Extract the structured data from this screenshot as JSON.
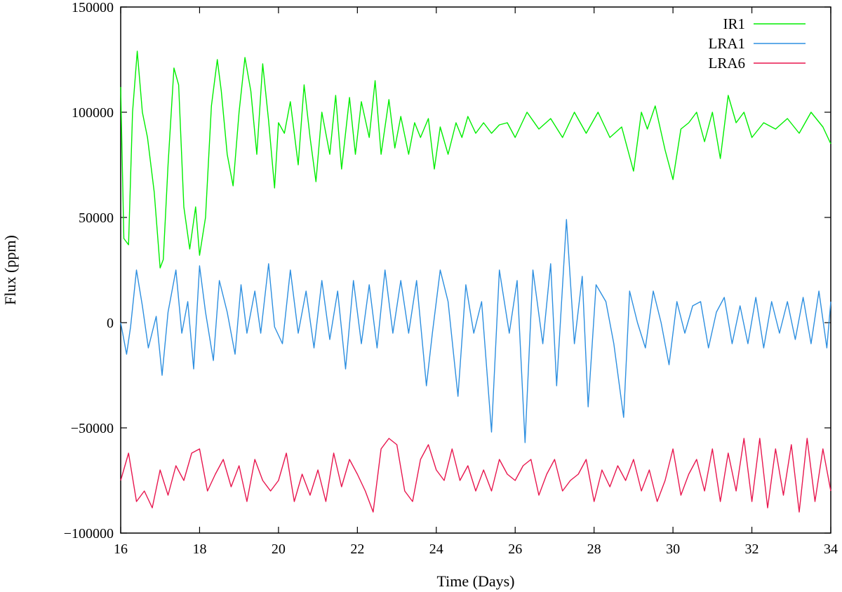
{
  "chart_data": {
    "type": "line",
    "title": "",
    "xlabel": "Time (Days)",
    "ylabel": "Flux (ppm)",
    "xlim": [
      16,
      34
    ],
    "ylim": [
      -100000,
      150000
    ],
    "xticks": [
      16,
      18,
      20,
      22,
      24,
      26,
      28,
      30,
      32,
      34
    ],
    "yticks": [
      -100000,
      -50000,
      0,
      50000,
      100000,
      150000
    ],
    "xtick_labels": [
      "16",
      "18",
      "20",
      "22",
      "24",
      "26",
      "28",
      "30",
      "32",
      "34"
    ],
    "ytick_labels": [
      "−100000",
      "−50000",
      "0",
      "50000",
      "100000",
      "150000"
    ],
    "grid": false,
    "legend_position": "top-right",
    "series": [
      {
        "name": "IR1",
        "color": "#00ee00",
        "x": [
          16.0,
          16.08,
          16.2,
          16.3,
          16.42,
          16.55,
          16.68,
          16.85,
          17.0,
          17.08,
          17.2,
          17.35,
          17.47,
          17.6,
          17.75,
          17.9,
          18.0,
          18.15,
          18.3,
          18.45,
          18.55,
          18.7,
          18.85,
          19.0,
          19.15,
          19.3,
          19.45,
          19.6,
          19.75,
          19.9,
          20.0,
          20.15,
          20.3,
          20.5,
          20.65,
          20.8,
          20.95,
          21.1,
          21.3,
          21.45,
          21.6,
          21.8,
          21.95,
          22.1,
          22.3,
          22.45,
          22.6,
          22.8,
          22.95,
          23.1,
          23.3,
          23.45,
          23.6,
          23.8,
          23.95,
          24.1,
          24.3,
          24.5,
          24.65,
          24.8,
          25.0,
          25.2,
          25.4,
          25.6,
          25.8,
          26.0,
          26.3,
          26.6,
          26.9,
          27.2,
          27.5,
          27.8,
          28.1,
          28.4,
          28.7,
          29.0,
          29.2,
          29.35,
          29.55,
          29.8,
          30.0,
          30.2,
          30.4,
          30.6,
          30.8,
          31.0,
          31.2,
          31.4,
          31.6,
          31.8,
          32.0,
          32.3,
          32.6,
          32.9,
          33.2,
          33.5,
          33.8,
          34.0
        ],
        "values": [
          112000,
          40000,
          37000,
          100000,
          129000,
          100000,
          88000,
          62000,
          26000,
          30000,
          75000,
          121000,
          113000,
          55000,
          35000,
          55000,
          32000,
          50000,
          103000,
          125000,
          110000,
          80000,
          65000,
          100000,
          126000,
          110000,
          80000,
          123000,
          96000,
          64000,
          95000,
          90000,
          105000,
          75000,
          113000,
          88000,
          67000,
          100000,
          80000,
          108000,
          73000,
          107000,
          80000,
          105000,
          88000,
          115000,
          80000,
          106000,
          83000,
          98000,
          80000,
          95000,
          88000,
          97000,
          73000,
          93000,
          80000,
          95000,
          88000,
          98000,
          90000,
          95000,
          90000,
          94000,
          95000,
          88000,
          100000,
          92000,
          97000,
          88000,
          100000,
          90000,
          100000,
          88000,
          93000,
          72000,
          100000,
          92000,
          103000,
          82000,
          68000,
          92000,
          95000,
          100000,
          86000,
          100000,
          78000,
          108000,
          95000,
          100000,
          88000,
          95000,
          92000,
          97000,
          90000,
          100000,
          93000,
          85000
        ]
      },
      {
        "name": "LRA1",
        "color": "#2d8fe0",
        "x": [
          16.0,
          16.15,
          16.25,
          16.4,
          16.55,
          16.7,
          16.9,
          17.05,
          17.2,
          17.4,
          17.55,
          17.7,
          17.85,
          18.0,
          18.15,
          18.35,
          18.5,
          18.7,
          18.9,
          19.05,
          19.2,
          19.4,
          19.55,
          19.75,
          19.9,
          20.1,
          20.3,
          20.5,
          20.7,
          20.9,
          21.1,
          21.3,
          21.5,
          21.7,
          21.9,
          22.1,
          22.3,
          22.5,
          22.7,
          22.9,
          23.1,
          23.3,
          23.5,
          23.75,
          23.9,
          24.1,
          24.3,
          24.55,
          24.75,
          24.95,
          25.15,
          25.4,
          25.6,
          25.85,
          26.05,
          26.25,
          26.45,
          26.7,
          26.9,
          27.05,
          27.3,
          27.5,
          27.7,
          27.85,
          28.05,
          28.3,
          28.5,
          28.75,
          28.9,
          29.1,
          29.3,
          29.5,
          29.7,
          29.9,
          30.1,
          30.3,
          30.5,
          30.7,
          30.9,
          31.1,
          31.3,
          31.5,
          31.7,
          31.9,
          32.1,
          32.3,
          32.5,
          32.7,
          32.9,
          33.1,
          33.3,
          33.5,
          33.7,
          33.9,
          34.0
        ],
        "values": [
          0,
          -15000,
          -2000,
          25000,
          8000,
          -12000,
          3000,
          -25000,
          5000,
          25000,
          -5000,
          10000,
          -22000,
          27000,
          5000,
          -18000,
          20000,
          5000,
          -15000,
          18000,
          -5000,
          15000,
          -5000,
          28000,
          -2000,
          -10000,
          25000,
          -5000,
          15000,
          -12000,
          20000,
          -8000,
          15000,
          -22000,
          20000,
          -10000,
          18000,
          -12000,
          25000,
          -5000,
          20000,
          -5000,
          20000,
          -30000,
          -5000,
          25000,
          10000,
          -35000,
          18000,
          -5000,
          10000,
          -52000,
          25000,
          -5000,
          20000,
          -57000,
          25000,
          -10000,
          28000,
          -30000,
          49000,
          -10000,
          22000,
          -40000,
          18000,
          10000,
          -10000,
          -45000,
          15000,
          0,
          -12000,
          15000,
          0,
          -20000,
          10000,
          -5000,
          8000,
          10000,
          -12000,
          5000,
          12000,
          -10000,
          8000,
          -10000,
          12000,
          -12000,
          10000,
          -5000,
          10000,
          -8000,
          12000,
          -10000,
          15000,
          -12000,
          10000
        ]
      },
      {
        "name": "LRA6",
        "color": "#e8174f",
        "x": [
          16.0,
          16.2,
          16.4,
          16.6,
          16.8,
          17.0,
          17.2,
          17.4,
          17.6,
          17.8,
          18.0,
          18.2,
          18.4,
          18.6,
          18.8,
          19.0,
          19.2,
          19.4,
          19.6,
          19.8,
          20.0,
          20.2,
          20.4,
          20.6,
          20.8,
          21.0,
          21.2,
          21.4,
          21.6,
          21.8,
          22.0,
          22.2,
          22.4,
          22.6,
          22.8,
          23.0,
          23.2,
          23.4,
          23.6,
          23.8,
          24.0,
          24.2,
          24.4,
          24.6,
          24.8,
          25.0,
          25.2,
          25.4,
          25.6,
          25.8,
          26.0,
          26.2,
          26.4,
          26.6,
          26.8,
          27.0,
          27.2,
          27.4,
          27.6,
          27.8,
          28.0,
          28.2,
          28.4,
          28.6,
          28.8,
          29.0,
          29.2,
          29.4,
          29.6,
          29.8,
          30.0,
          30.2,
          30.4,
          30.6,
          30.8,
          31.0,
          31.2,
          31.4,
          31.6,
          31.8,
          32.0,
          32.2,
          32.4,
          32.6,
          32.8,
          33.0,
          33.2,
          33.4,
          33.6,
          33.8,
          34.0
        ],
        "values": [
          -75000,
          -62000,
          -85000,
          -80000,
          -88000,
          -70000,
          -82000,
          -68000,
          -75000,
          -62000,
          -60000,
          -80000,
          -72000,
          -65000,
          -78000,
          -68000,
          -85000,
          -65000,
          -75000,
          -80000,
          -75000,
          -62000,
          -85000,
          -72000,
          -82000,
          -70000,
          -85000,
          -62000,
          -78000,
          -65000,
          -72000,
          -80000,
          -90000,
          -60000,
          -55000,
          -58000,
          -80000,
          -85000,
          -65000,
          -58000,
          -70000,
          -75000,
          -60000,
          -75000,
          -68000,
          -80000,
          -70000,
          -80000,
          -65000,
          -72000,
          -75000,
          -68000,
          -65000,
          -82000,
          -72000,
          -65000,
          -80000,
          -75000,
          -72000,
          -65000,
          -85000,
          -70000,
          -78000,
          -68000,
          -75000,
          -65000,
          -80000,
          -70000,
          -85000,
          -75000,
          -60000,
          -82000,
          -72000,
          -65000,
          -80000,
          -60000,
          -85000,
          -62000,
          -80000,
          -55000,
          -85000,
          -55000,
          -88000,
          -60000,
          -82000,
          -58000,
          -90000,
          -55000,
          -85000,
          -60000,
          -80000
        ]
      }
    ]
  }
}
